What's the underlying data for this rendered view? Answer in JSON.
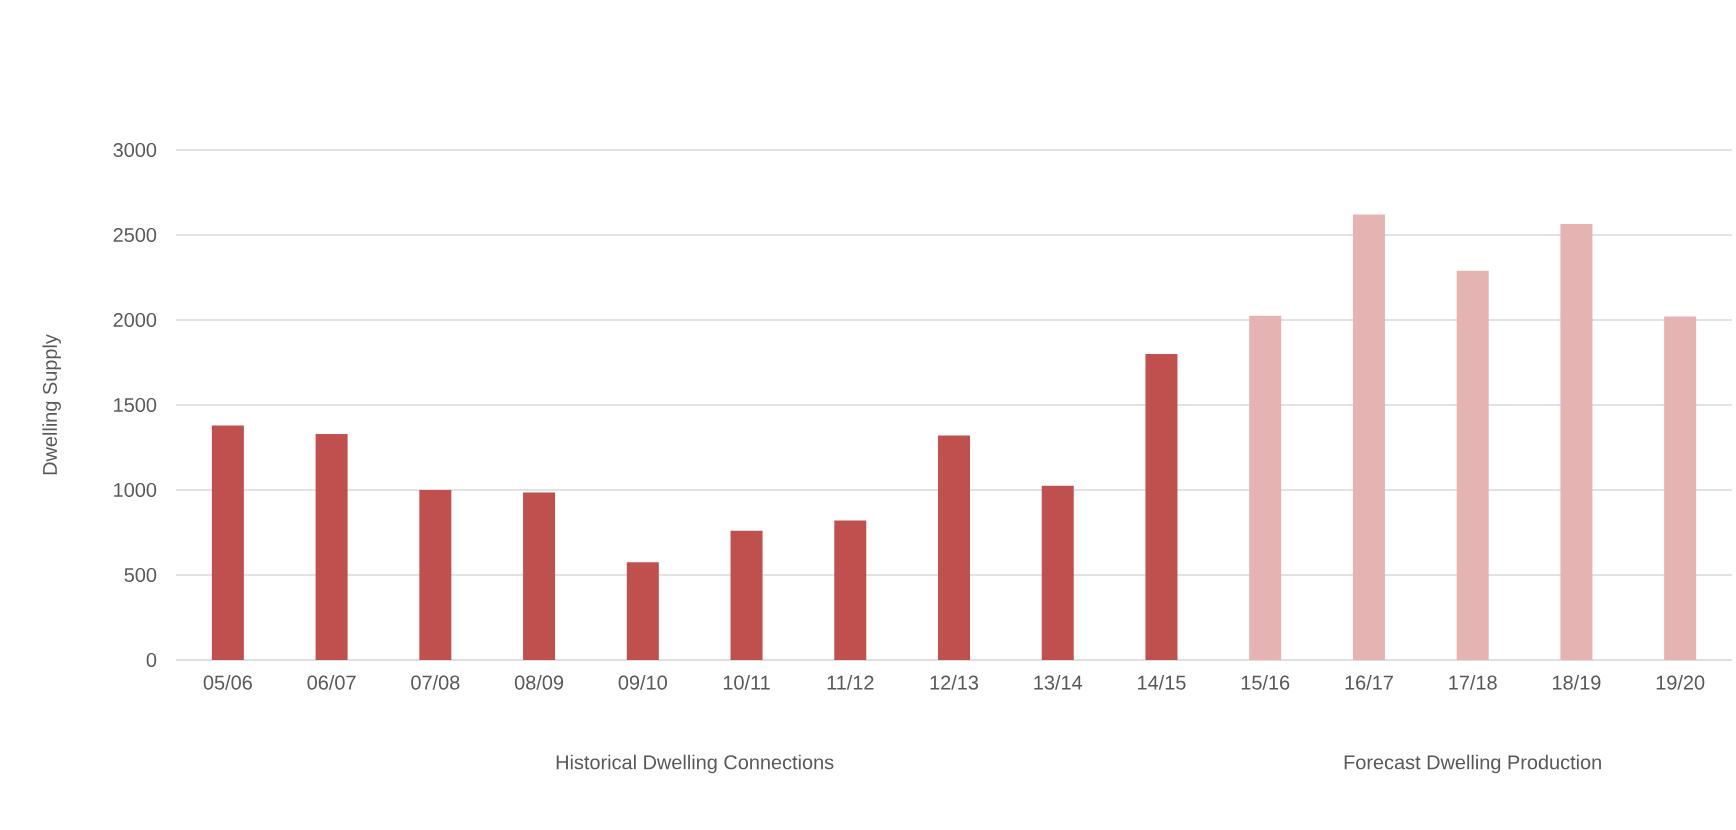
{
  "chart_data": {
    "type": "bar",
    "ylabel": "Dwelling Supply",
    "categories": [
      "05/06",
      "06/07",
      "07/08",
      "08/09",
      "09/10",
      "10/11",
      "11/12",
      "12/13",
      "13/14",
      "14/15",
      "15/16",
      "16/17",
      "17/18",
      "18/19",
      "19/20"
    ],
    "values": [
      1380,
      1330,
      1000,
      985,
      575,
      760,
      820,
      1320,
      1025,
      1800,
      2025,
      2620,
      2290,
      2565,
      2020
    ],
    "colors": [
      "#c0504d",
      "#c0504d",
      "#c0504d",
      "#c0504d",
      "#c0504d",
      "#c0504d",
      "#c0504d",
      "#c0504d",
      "#c0504d",
      "#c0504d",
      "#e6b3b3",
      "#e6b3b3",
      "#e6b3b3",
      "#e6b3b3",
      "#e6b3b3"
    ],
    "ylim": [
      0,
      3000
    ],
    "yticks": [
      0,
      500,
      1000,
      1500,
      2000,
      2500,
      3000
    ],
    "grid": "y",
    "annotations": [
      "Historical Dwelling Connections",
      "Forecast Dwelling Production"
    ]
  }
}
